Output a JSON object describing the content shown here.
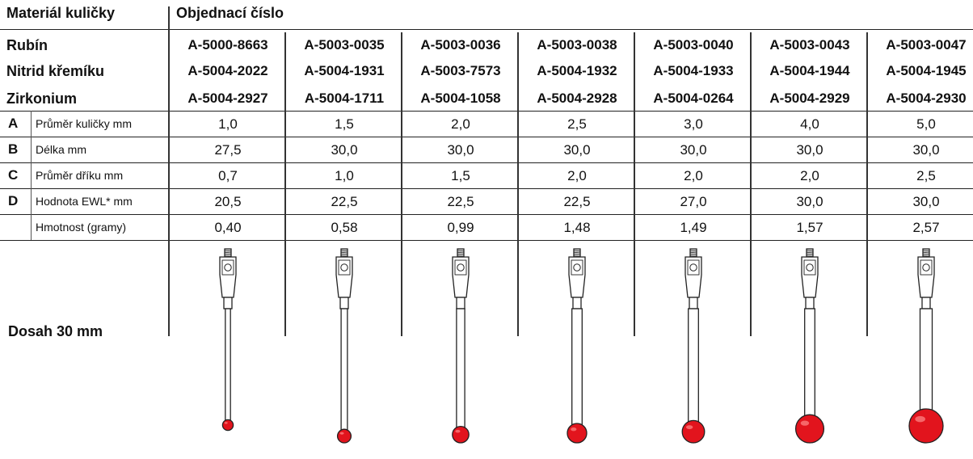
{
  "header": {
    "ball_material": "Materiál kuličky",
    "order_number": "Objednací číslo"
  },
  "materials": [
    {
      "name": "Rubín",
      "codes": [
        "A-5000-8663",
        "A-5003-0035",
        "A-5003-0036",
        "A-5003-0038",
        "A-5003-0040",
        "A-5003-0043",
        "A-5003-0047"
      ]
    },
    {
      "name": "Nitrid křemíku",
      "codes": [
        "A-5004-2022",
        "A-5004-1931",
        "A-5003-7573",
        "A-5004-1932",
        "A-5004-1933",
        "A-5004-1944",
        "A-5004-1945"
      ]
    },
    {
      "name": "Zirkonium",
      "codes": [
        "A-5004-2927",
        "A-5004-1711",
        "A-5004-1058",
        "A-5004-2928",
        "A-5004-0264",
        "A-5004-2929",
        "A-5004-2930"
      ]
    }
  ],
  "specs": [
    {
      "letter": "A",
      "name": "Průměr kuličky mm",
      "values": [
        "1,0",
        "1,5",
        "2,0",
        "2,5",
        "3,0",
        "4,0",
        "5,0"
      ]
    },
    {
      "letter": "B",
      "name": "Délka mm",
      "values": [
        "27,5",
        "30,0",
        "30,0",
        "30,0",
        "30,0",
        "30,0",
        "30,0"
      ]
    },
    {
      "letter": "C",
      "name": "Průměr dříku mm",
      "values": [
        "0,7",
        "1,0",
        "1,5",
        "2,0",
        "2,0",
        "2,0",
        "2,5"
      ]
    },
    {
      "letter": "D",
      "name": "Hodnota EWL* mm",
      "values": [
        "20,5",
        "22,5",
        "22,5",
        "22,5",
        "27,0",
        "30,0",
        "30,0"
      ]
    },
    {
      "letter": "",
      "name": "Hmotnost (gramy)",
      "values": [
        "0,40",
        "0,58",
        "0,99",
        "1,48",
        "1,49",
        "1,57",
        "2,57"
      ]
    }
  ],
  "reach_label": "Dosah 30 mm",
  "probe_diagram": {
    "ball_color": "#e2141d",
    "body_color": "#ffffff",
    "stroke_color": "#222222",
    "ball_diameters_mm": [
      1.0,
      1.5,
      2.0,
      2.5,
      3.0,
      4.0,
      5.0
    ],
    "stem_diameters_mm": [
      0.7,
      1.0,
      1.5,
      2.0,
      2.0,
      2.0,
      2.5
    ]
  }
}
